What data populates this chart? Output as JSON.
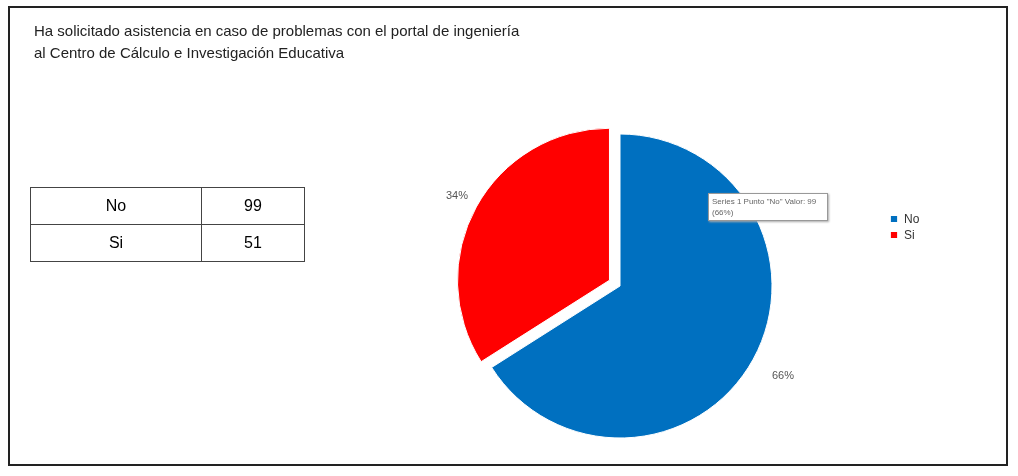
{
  "chart_data": [
    {
      "type": "other",
      "title": [
        "Ha solicitado asistencia en caso de problemas con el portal de ingeniería",
        "al Centro de Cálculo e Investigación Educativa"
      ],
      "categories": [
        "No",
        "Si"
      ],
      "values": [
        99,
        51
      ],
      "data_labels": true
    },
    {
      "type": "pie",
      "categories": [
        "No",
        "Si"
      ],
      "values": [
        66,
        34
      ],
      "colors": [
        "#0070c0",
        "#ff0000"
      ],
      "value_labels": [
        "66%",
        "34%"
      ],
      "legend": "right",
      "annotations": [
        "Series 1 Punto \"No\" Valor: 99 (66%)"
      ]
    }
  ]
}
